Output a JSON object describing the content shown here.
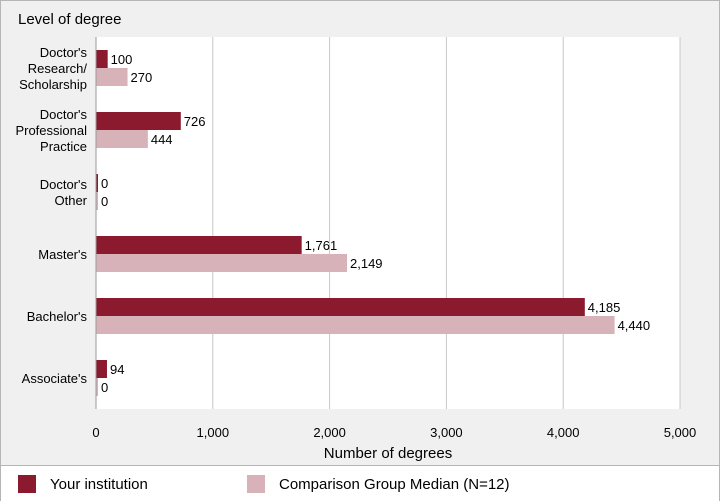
{
  "chart_data": {
    "type": "bar",
    "orientation": "horizontal",
    "ylabel": "Level of degree",
    "xlabel": "Number of degrees",
    "xlim": [
      0,
      5000
    ],
    "xticks": [
      0,
      1000,
      2000,
      3000,
      4000,
      5000
    ],
    "xtick_labels": [
      "0",
      "1,000",
      "2,000",
      "3,000",
      "4,000",
      "5,000"
    ],
    "grid": "vertical",
    "categories": [
      [
        "Doctor's",
        "Research/",
        "Scholarship"
      ],
      [
        "Doctor's",
        "Professional",
        "Practice"
      ],
      [
        "Doctor's",
        "Other"
      ],
      [
        "Master's"
      ],
      [
        "Bachelor's"
      ],
      [
        "Associate's"
      ]
    ],
    "series": [
      {
        "name": "Your institution",
        "color": "#8b1a2e",
        "values": [
          100,
          726,
          0,
          1761,
          4185,
          94
        ],
        "labels": [
          "100",
          "726",
          "0",
          "1,761",
          "4,185",
          "94"
        ]
      },
      {
        "name": "Comparison Group Median (N=12)",
        "color": "#d8b2b9",
        "values": [
          270,
          444,
          0,
          2149,
          4440,
          0
        ],
        "labels": [
          "270",
          "444",
          "0",
          "2,149",
          "4,440",
          "0"
        ]
      }
    ],
    "legend_position": "bottom"
  }
}
